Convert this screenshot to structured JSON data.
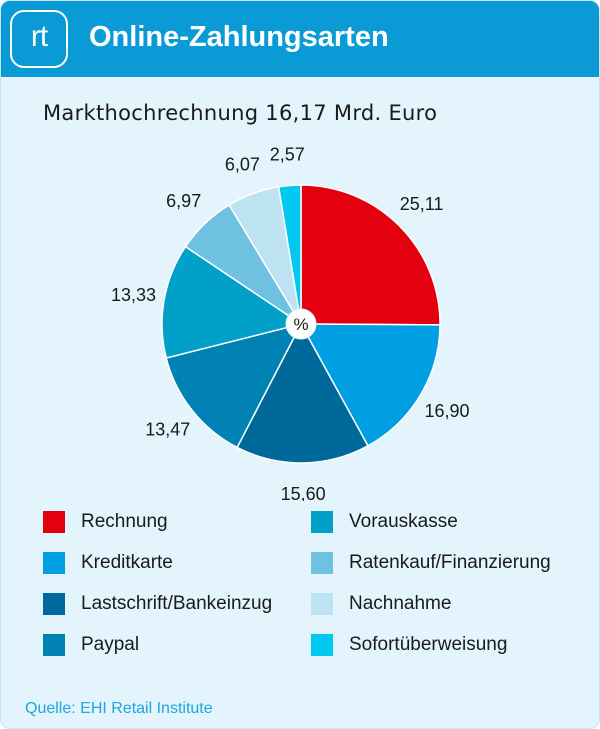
{
  "header": {
    "logo_text": "rt",
    "title": "Online-Zahlungsarten",
    "bg_color": "#0a9ad6"
  },
  "subtitle": "Markthochrechnung 16,17 Mrd. Euro",
  "source": "Quelle: EHI Retail Institute",
  "chart_data": {
    "type": "pie",
    "center_label": "%",
    "unit": "%",
    "start_angle_deg": 0,
    "direction": "clockwise",
    "slices": [
      {
        "name": "Rechnung",
        "value": 25.11,
        "label": "25,11",
        "color": "#e3000f"
      },
      {
        "name": "Kreditkarte",
        "value": 16.9,
        "label": "16,90",
        "color": "#009fe3"
      },
      {
        "name": "Lastschrift/Bankeinzug",
        "value": 15.6,
        "label": "15,60",
        "color": "#00699b"
      },
      {
        "name": "Paypal",
        "value": 13.47,
        "label": "13,47",
        "color": "#0082b4"
      },
      {
        "name": "Vorauskasse",
        "value": 13.33,
        "label": "13,33",
        "color": "#00a0c8"
      },
      {
        "name": "Ratenkauf/Finanzierung",
        "value": 6.97,
        "label": "6,97",
        "color": "#6ec1e0"
      },
      {
        "name": "Nachnahme",
        "value": 6.07,
        "label": "6,07",
        "color": "#bde3f2"
      },
      {
        "name": "Sofortüberweisung",
        "value": 2.57,
        "label": "2,57",
        "color": "#00c8ee"
      }
    ],
    "legend": {
      "placement": "bottom",
      "columns": [
        [
          "Rechnung",
          "Kreditkarte",
          "Lastschrift/Bankeinzug",
          "Paypal"
        ],
        [
          "Vorauskasse",
          "Ratenkauf/Finanzierung",
          "Nachnahme",
          "Sofortüberweisung"
        ]
      ]
    }
  }
}
